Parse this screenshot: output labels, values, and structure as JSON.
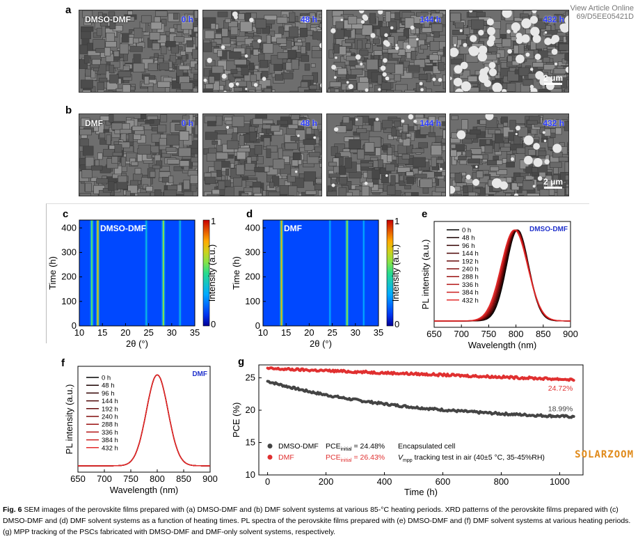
{
  "header": {
    "view_article": "View Article Online",
    "doi": "69/D5EE05421D"
  },
  "panels": {
    "a": {
      "label": "a",
      "system": "DMSO-DMF",
      "times": [
        "0 h",
        "48 h",
        "144 h",
        "432 h"
      ],
      "scale": "2 μm"
    },
    "b": {
      "label": "b",
      "system": "DMF",
      "times": [
        "0 h",
        "48 h",
        "144 h",
        "432 h"
      ],
      "scale": "2 μm"
    }
  },
  "chart_data": [
    {
      "id": "c",
      "label": "c",
      "type": "heatmap",
      "title": "DMSO-DMF",
      "xlabel": "2θ (°)",
      "ylabel": "Time (h)",
      "colorbar_label": "Intensity (a.u.)",
      "colorbar_ticks": [
        "0",
        "1"
      ],
      "xlim": [
        10,
        35
      ],
      "ylim": [
        0,
        432
      ],
      "xticks": [
        10,
        15,
        20,
        25,
        30,
        35
      ],
      "yticks": [
        0,
        100,
        200,
        300,
        400
      ],
      "peaks": [
        {
          "two_theta": 12.7,
          "intensity": 0.55
        },
        {
          "two_theta": 14.0,
          "intensity": 0.75
        },
        {
          "two_theta": 24.5,
          "intensity": 0.35
        },
        {
          "two_theta": 28.2,
          "intensity": 0.6
        },
        {
          "two_theta": 31.8,
          "intensity": 0.35
        }
      ]
    },
    {
      "id": "d",
      "label": "d",
      "type": "heatmap",
      "title": "DMF",
      "xlabel": "2θ (°)",
      "ylabel": "Time (h)",
      "colorbar_label": "Intensity (a.u.)",
      "colorbar_ticks": [
        "0",
        "1"
      ],
      "xlim": [
        10,
        35
      ],
      "ylim": [
        0,
        432
      ],
      "xticks": [
        10,
        15,
        20,
        25,
        30,
        35
      ],
      "yticks": [
        0,
        100,
        200,
        300,
        400
      ],
      "peaks": [
        {
          "two_theta": 14.0,
          "intensity": 0.75
        },
        {
          "two_theta": 24.5,
          "intensity": 0.3
        },
        {
          "two_theta": 28.2,
          "intensity": 0.6
        },
        {
          "two_theta": 31.8,
          "intensity": 0.3
        }
      ]
    },
    {
      "id": "e",
      "label": "e",
      "type": "line",
      "title": "DMSO-DMF",
      "xlabel": "Wavelength (nm)",
      "ylabel": "PL intensity (a.u.)",
      "xlim": [
        650,
        900
      ],
      "xticks": [
        650,
        700,
        750,
        800,
        850,
        900
      ],
      "series": [
        {
          "name": "0 h",
          "color": "#000000",
          "peak": 803,
          "fwhm": 48
        },
        {
          "name": "48 h",
          "color": "#1a0000",
          "peak": 802,
          "fwhm": 49
        },
        {
          "name": "96 h",
          "color": "#330000",
          "peak": 802,
          "fwhm": 50
        },
        {
          "name": "144 h",
          "color": "#4d0505",
          "peak": 801,
          "fwhm": 51
        },
        {
          "name": "192 h",
          "color": "#660808",
          "peak": 800,
          "fwhm": 52
        },
        {
          "name": "240 h",
          "color": "#800b0b",
          "peak": 800,
          "fwhm": 53
        },
        {
          "name": "288 h",
          "color": "#990f0f",
          "peak": 799,
          "fwhm": 54
        },
        {
          "name": "336 h",
          "color": "#b31414",
          "peak": 799,
          "fwhm": 55
        },
        {
          "name": "384 h",
          "color": "#cc1f1f",
          "peak": 798,
          "fwhm": 56
        },
        {
          "name": "432 h",
          "color": "#e32a2a",
          "peak": 797,
          "fwhm": 57
        }
      ]
    },
    {
      "id": "f",
      "label": "f",
      "type": "line",
      "title": "DMF",
      "xlabel": "Wavelength (nm)",
      "ylabel": "PL intensity (a.u.)",
      "xlim": [
        650,
        900
      ],
      "xticks": [
        650,
        700,
        750,
        800,
        850,
        900
      ],
      "series": [
        {
          "name": "0 h",
          "color": "#000000",
          "peak": 800,
          "fwhm": 48
        },
        {
          "name": "48 h",
          "color": "#1a0000",
          "peak": 800,
          "fwhm": 48
        },
        {
          "name": "96 h",
          "color": "#330000",
          "peak": 800,
          "fwhm": 48
        },
        {
          "name": "144 h",
          "color": "#4d0505",
          "peak": 800,
          "fwhm": 48
        },
        {
          "name": "192 h",
          "color": "#660808",
          "peak": 800,
          "fwhm": 48
        },
        {
          "name": "240 h",
          "color": "#800b0b",
          "peak": 800,
          "fwhm": 48
        },
        {
          "name": "288 h",
          "color": "#990f0f",
          "peak": 800,
          "fwhm": 48
        },
        {
          "name": "336 h",
          "color": "#b31414",
          "peak": 800,
          "fwhm": 48
        },
        {
          "name": "384 h",
          "color": "#cc1f1f",
          "peak": 800,
          "fwhm": 48
        },
        {
          "name": "432 h",
          "color": "#e32a2a",
          "peak": 800,
          "fwhm": 48
        }
      ]
    },
    {
      "id": "g",
      "label": "g",
      "type": "scatter",
      "xlabel": "Time (h)",
      "ylabel": "PCE (%)",
      "xlim": [
        -30,
        1080
      ],
      "ylim": [
        10,
        27
      ],
      "xticks": [
        0,
        200,
        400,
        600,
        800,
        1000
      ],
      "yticks": [
        10,
        15,
        20,
        25
      ],
      "series": [
        {
          "name": "DMSO-DMF",
          "color": "#444444",
          "start": 24.48,
          "end": 18.99,
          "end_label": "18.99%",
          "pce_label": "PCE",
          "pce_sub": "initial",
          "pce_value": " = 24.48%"
        },
        {
          "name": "DMF",
          "color": "#e03030",
          "start": 26.43,
          "end": 24.72,
          "end_label": "24.72%",
          "pce_label": "PCE",
          "pce_sub": "initial",
          "pce_value": " = 26.43%"
        }
      ],
      "notes": {
        "line1": "Encapsulated cell",
        "line2_v": "V",
        "line2_sub": "mpp",
        "line2_rest": " tracking test in air (40±5 °C, 35-45%RH)"
      },
      "x_end": 1050
    }
  ],
  "watermark": "SOLARZOOM",
  "caption": {
    "fig": "Fig. 6",
    "text": " SEM images of the perovskite films prepared with (a) DMSO-DMF and (b) DMF solvent systems at various 85-°C heating periods. XRD patterns of the perovskite films prepared with (c) DMSO-DMF and (d) DMF solvent systems as a function of heating times. PL spectra of the perovskite films prepared with (e) DMSO-DMF and (f) DMF solvent systems at various heating periods. (g) MPP tracking of the PSCs fabricated with DMSO-DMF and DMF-only solvent systems, respectively."
  }
}
